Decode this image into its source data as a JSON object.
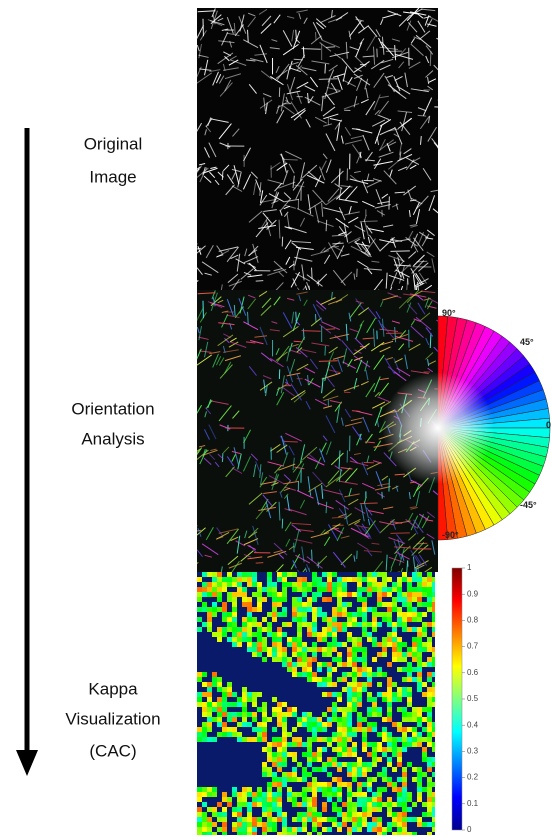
{
  "steps": [
    {
      "lines": [
        "Original",
        "Image"
      ]
    },
    {
      "lines": [
        "Orientation",
        "Analysis"
      ]
    },
    {
      "lines": [
        "Kappa",
        "Visualization",
        "(CAC)"
      ]
    }
  ],
  "wheel": {
    "labels": [
      "90°",
      "45°",
      "0",
      "-45°",
      "-90°"
    ]
  },
  "colorbar": {
    "ticks": [
      0,
      0.1,
      0.2,
      0.3,
      0.4,
      0.5,
      0.6,
      0.7,
      0.8,
      0.9,
      1
    ]
  }
}
